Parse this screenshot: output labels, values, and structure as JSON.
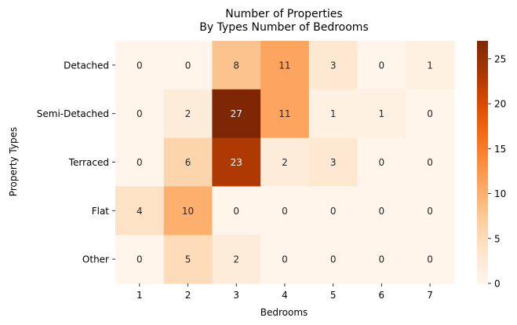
{
  "chart_data": {
    "type": "heatmap",
    "title": [
      "Number of Properties",
      "By Types Number of Bedrooms"
    ],
    "xlabel": "Bedrooms",
    "ylabel": "Property Types",
    "x_categories": [
      "1",
      "2",
      "3",
      "4",
      "5",
      "6",
      "7"
    ],
    "y_categories": [
      "Detached",
      "Semi-Detached",
      "Terraced",
      "Flat",
      "Other"
    ],
    "values": [
      [
        0,
        0,
        8,
        11,
        3,
        0,
        1
      ],
      [
        0,
        2,
        27,
        11,
        1,
        1,
        0
      ],
      [
        0,
        6,
        23,
        2,
        3,
        0,
        0
      ],
      [
        4,
        10,
        0,
        0,
        0,
        0,
        0
      ],
      [
        0,
        5,
        2,
        0,
        0,
        0,
        0
      ]
    ],
    "colorbar": {
      "colormap": "Oranges",
      "range": [
        0,
        27
      ],
      "ticks": [
        0,
        5,
        10,
        15,
        20,
        25
      ]
    },
    "grid": false,
    "legend": "colorbar-right"
  }
}
